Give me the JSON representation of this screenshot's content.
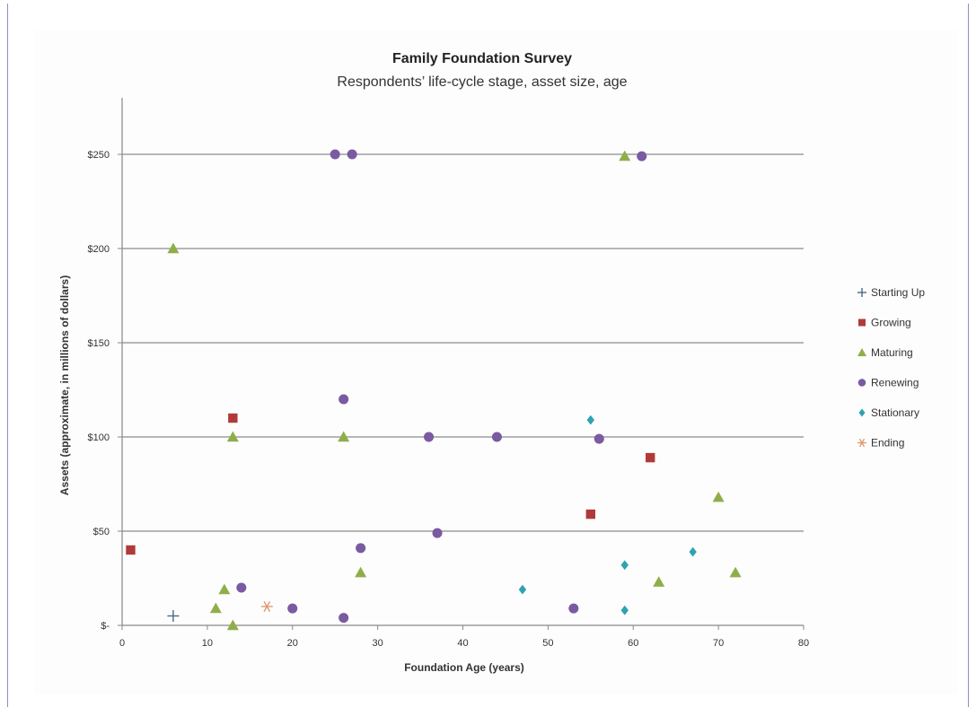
{
  "chart_data": {
    "type": "scatter",
    "title": "Family Foundation Survey",
    "subtitle": "Respondents’ life-cycle stage, asset size, age",
    "xlabel": "Foundation Age (years)",
    "ylabel": "Assets (approximate, in millions of dollars)",
    "xlim": [
      0,
      80
    ],
    "ylim": [
      0,
      250
    ],
    "x_ticks": [
      0,
      10,
      20,
      30,
      40,
      50,
      60,
      70,
      80
    ],
    "y_ticks": [
      0,
      50,
      100,
      150,
      200,
      250
    ],
    "y_tick_labels": [
      "$-",
      "$50",
      "$100",
      "$150",
      "$200",
      "$250"
    ],
    "grid": "horizontal",
    "legend_position": "right",
    "series": [
      {
        "name": "Starting Up",
        "marker": "plus",
        "color": "#4a6a8c",
        "points": [
          [
            6,
            5
          ]
        ]
      },
      {
        "name": "Growing",
        "marker": "square",
        "color": "#b03a3a",
        "points": [
          [
            1,
            40
          ],
          [
            13,
            110
          ],
          [
            55,
            59
          ],
          [
            62,
            89
          ]
        ]
      },
      {
        "name": "Maturing",
        "marker": "triangle",
        "color": "#8fae4a",
        "points": [
          [
            6,
            200
          ],
          [
            59,
            249
          ],
          [
            13,
            100
          ],
          [
            26,
            100
          ],
          [
            11,
            9
          ],
          [
            12,
            19
          ],
          [
            13,
            0
          ],
          [
            28,
            28
          ],
          [
            63,
            23
          ],
          [
            70,
            68
          ],
          [
            72,
            28
          ]
        ]
      },
      {
        "name": "Renewing",
        "marker": "circle",
        "color": "#7a5aa0",
        "points": [
          [
            25,
            250
          ],
          [
            27,
            250
          ],
          [
            61,
            249
          ],
          [
            26,
            120
          ],
          [
            36,
            100
          ],
          [
            44,
            100
          ],
          [
            56,
            99
          ],
          [
            28,
            41
          ],
          [
            37,
            49
          ],
          [
            14,
            20
          ],
          [
            20,
            9
          ],
          [
            26,
            4
          ],
          [
            53,
            9
          ]
        ]
      },
      {
        "name": "Stationary",
        "marker": "diamond",
        "color": "#2fa3b0",
        "points": [
          [
            55,
            109
          ],
          [
            47,
            19
          ],
          [
            59,
            32
          ],
          [
            59,
            8
          ],
          [
            67,
            39
          ]
        ]
      },
      {
        "name": "Ending",
        "marker": "asterisk",
        "color": "#e0956a",
        "points": [
          [
            17,
            10
          ]
        ]
      }
    ]
  }
}
